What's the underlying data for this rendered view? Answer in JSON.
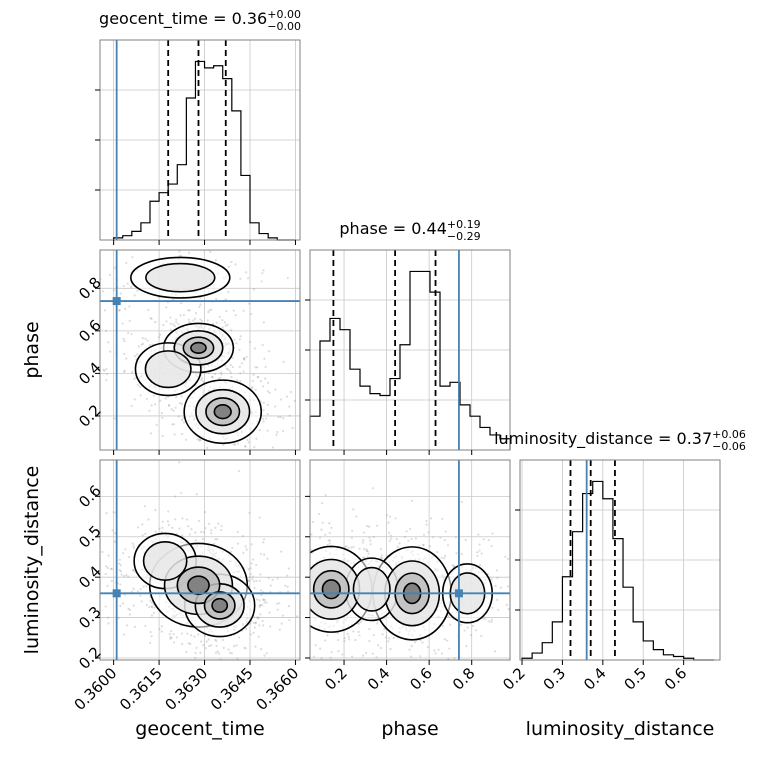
{
  "chart_data": {
    "type": "corner",
    "parameters": [
      "geocent_time",
      "phase",
      "luminosity_distance"
    ],
    "axis_labels": {
      "geocent_time": "geocent_time",
      "phase": "phase",
      "luminosity_distance": "luminosity_distance"
    },
    "titles": {
      "geocent_time": {
        "lead": "geocent_time = 0.36",
        "sup": "+0.00",
        "sub": "−0.00"
      },
      "phase": {
        "lead": "phase = 0.44",
        "sup": "+0.19",
        "sub": "−0.29"
      },
      "luminosity_distance": {
        "lead": "luminosity_distance = 0.37",
        "sup": "+0.06",
        "sub": "−0.06"
      }
    },
    "ranges": {
      "geocent_time": [
        0.35955,
        0.36615
      ],
      "phase": [
        0.04,
        0.98
      ],
      "luminosity_distance": [
        0.195,
        0.69
      ]
    },
    "ticks": {
      "geocent_time": {
        "values": [
          0.36,
          0.3615,
          0.363,
          0.3645,
          0.366
        ],
        "labels": [
          "0.3600",
          "0.3615",
          "0.3630",
          "0.3645",
          "0.3660"
        ]
      },
      "phase": {
        "values": [
          0.2,
          0.4,
          0.6,
          0.8
        ],
        "labels": [
          "0.2",
          "0.4",
          "0.6",
          "0.8"
        ]
      },
      "luminosity_distance": {
        "values": [
          0.2,
          0.3,
          0.4,
          0.5,
          0.6
        ],
        "labels": [
          "0.2",
          "0.3",
          "0.4",
          "0.5",
          "0.6"
        ]
      }
    },
    "truths": {
      "geocent_time": 0.3601,
      "phase": 0.74,
      "luminosity_distance": 0.36
    },
    "quantiles": {
      "geocent_time": [
        0.3618,
        0.3628,
        0.3637
      ],
      "phase": [
        0.15,
        0.44,
        0.63
      ],
      "luminosity_distance": [
        0.32,
        0.37,
        0.43
      ]
    },
    "histograms": {
      "geocent_time": {
        "edges": [
          0.36,
          0.3603,
          0.3606,
          0.3609,
          0.3612,
          0.3615,
          0.3618,
          0.3621,
          0.3624,
          0.3627,
          0.363,
          0.3633,
          0.3636,
          0.3639,
          0.3642,
          0.3645,
          0.3648,
          0.3651,
          0.3654,
          0.3657,
          0.366
        ],
        "counts": [
          1,
          2,
          4,
          8,
          18,
          22,
          26,
          35,
          66,
          83,
          80,
          81,
          75,
          60,
          30,
          8,
          3,
          1,
          0,
          0
        ]
      },
      "phase": {
        "edges": [
          0.04,
          0.087,
          0.134,
          0.181,
          0.228,
          0.275,
          0.322,
          0.369,
          0.416,
          0.463,
          0.51,
          0.557,
          0.604,
          0.651,
          0.698,
          0.745,
          0.792,
          0.839,
          0.886,
          0.933,
          0.98
        ],
        "counts": [
          18,
          58,
          70,
          64,
          43,
          34,
          30,
          29,
          38,
          56,
          95,
          95,
          84,
          34,
          36,
          24,
          18,
          12,
          8,
          6
        ]
      },
      "luminosity_distance": {
        "edges": [
          0.2,
          0.225,
          0.25,
          0.275,
          0.3,
          0.325,
          0.35,
          0.375,
          0.4,
          0.425,
          0.45,
          0.475,
          0.5,
          0.525,
          0.55,
          0.575,
          0.6,
          0.625,
          0.65,
          0.675
        ],
        "counts": [
          1,
          4,
          10,
          22,
          48,
          74,
          96,
          103,
          93,
          70,
          42,
          22,
          11,
          6,
          3,
          2,
          1,
          0,
          0
        ]
      }
    },
    "density_modes": {
      "phase_vs_geocent_time": [
        {
          "x": 0.3628,
          "y": 0.52,
          "sx": 0.0005,
          "sy": 0.05,
          "w": 1.0
        },
        {
          "x": 0.3636,
          "y": 0.22,
          "sx": 0.0006,
          "sy": 0.07,
          "w": 0.85
        },
        {
          "x": 0.3622,
          "y": 0.85,
          "sx": 0.0012,
          "sy": 0.07,
          "w": 0.35
        },
        {
          "x": 0.3618,
          "y": 0.42,
          "sx": 0.0007,
          "sy": 0.08,
          "w": 0.45
        }
      ],
      "luminosity_distance_vs_geocent_time": [
        {
          "x": 0.3628,
          "y": 0.38,
          "sx": 0.0007,
          "sy": 0.045,
          "w": 1.0
        },
        {
          "x": 0.3635,
          "y": 0.33,
          "sx": 0.0006,
          "sy": 0.04,
          "w": 0.7
        },
        {
          "x": 0.3617,
          "y": 0.44,
          "sx": 0.0006,
          "sy": 0.04,
          "w": 0.55
        }
      ],
      "luminosity_distance_vs_phase": [
        {
          "x": 0.52,
          "y": 0.36,
          "sx": 0.08,
          "sy": 0.05,
          "w": 1.0
        },
        {
          "x": 0.14,
          "y": 0.37,
          "sx": 0.09,
          "sy": 0.05,
          "w": 0.85
        },
        {
          "x": 0.33,
          "y": 0.37,
          "sx": 0.08,
          "sy": 0.05,
          "w": 0.45
        },
        {
          "x": 0.78,
          "y": 0.36,
          "sx": 0.08,
          "sy": 0.05,
          "w": 0.4
        }
      ]
    }
  }
}
